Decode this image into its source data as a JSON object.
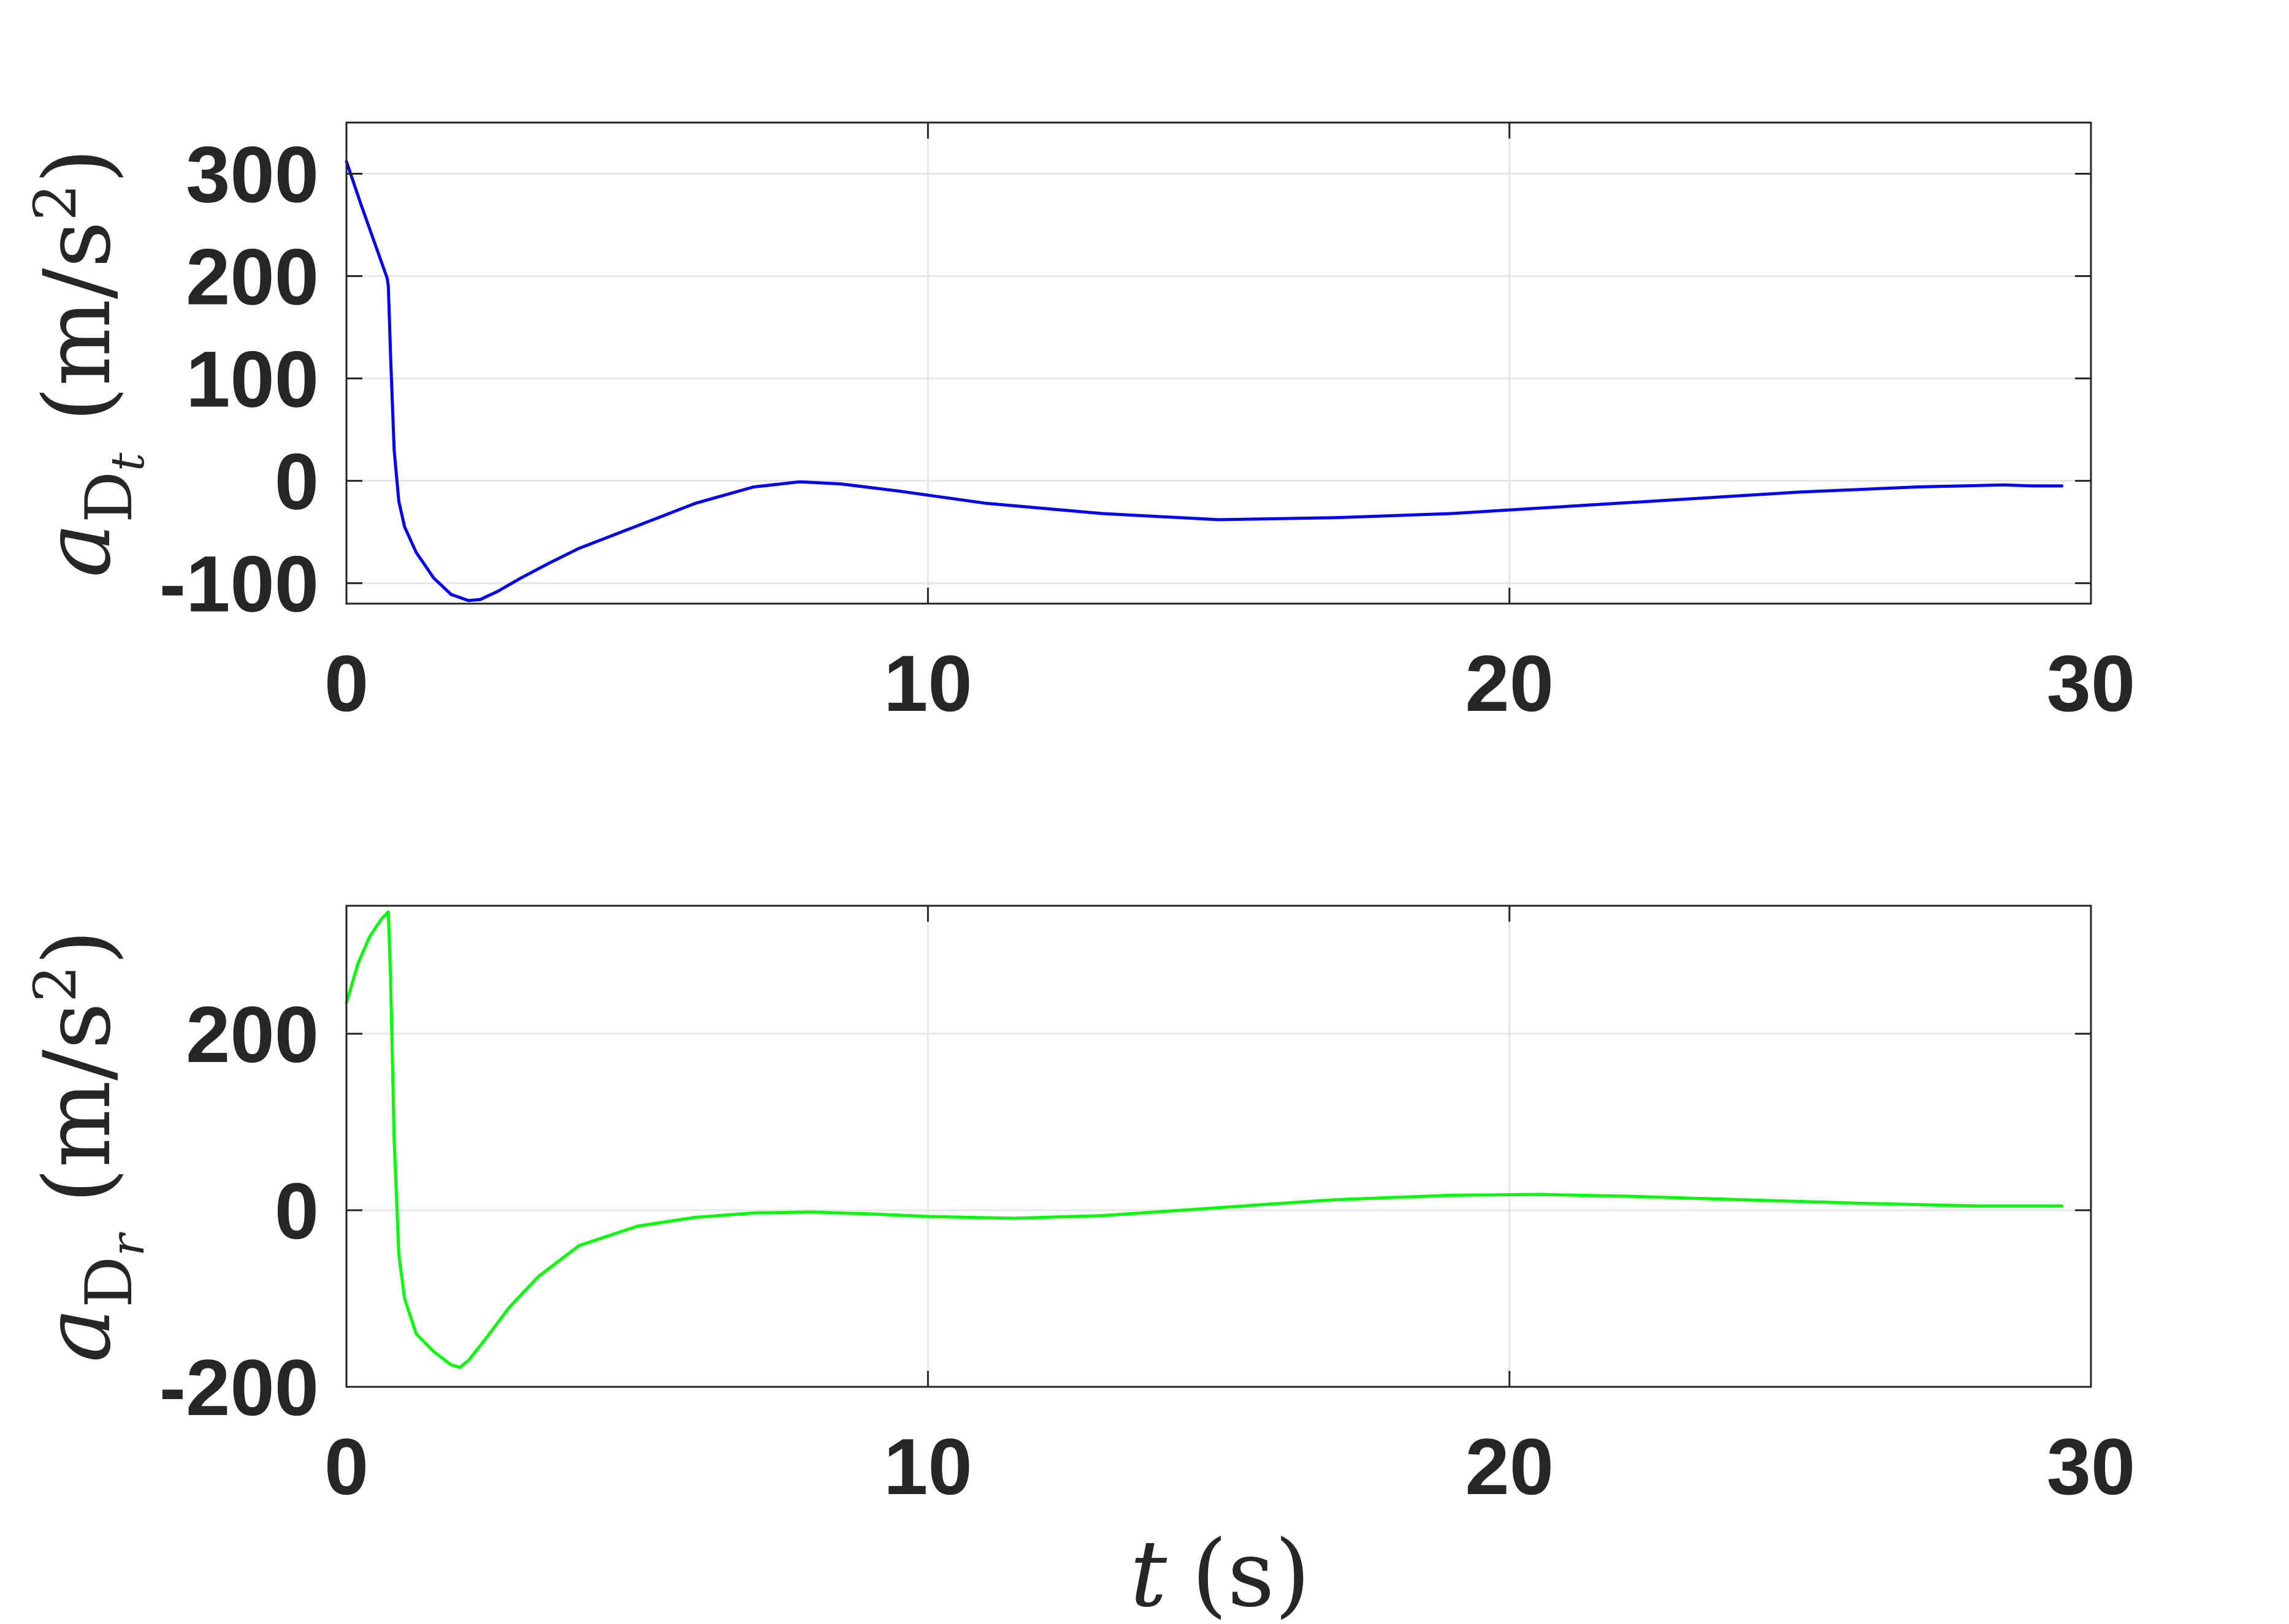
{
  "chart_data": [
    {
      "type": "line",
      "xlabel": "",
      "ylabel": {
        "symbol": "a",
        "subscript": "D",
        "sub_subscript": "t",
        "units": "(m/s",
        "units_power": "2",
        "units_close": ")"
      },
      "xlim": [
        0,
        30
      ],
      "ylim": [
        -120,
        350
      ],
      "xticks": [
        0,
        10,
        20,
        30
      ],
      "xtick_labels": [
        "0",
        "10",
        "20",
        "30"
      ],
      "yticks": [
        -100,
        0,
        100,
        200,
        300
      ],
      "ytick_labels": [
        "-100",
        "0",
        "100",
        "200",
        "300"
      ],
      "grid": true,
      "series": [
        {
          "color": "#0000ff",
          "x": [
            0,
            0.25,
            0.5,
            0.7,
            0.72,
            0.76,
            0.82,
            0.9,
            1.0,
            1.2,
            1.5,
            1.8,
            2.1,
            2.3,
            2.6,
            3.0,
            3.5,
            4.0,
            5.0,
            6.0,
            7.0,
            7.8,
            8.5,
            9.5,
            11.0,
            13.0,
            15.0,
            17.0,
            19.0,
            21.0,
            23.0,
            25.0,
            27.0,
            28.5,
            29.0,
            29.5
          ],
          "y": [
            312,
            270,
            230,
            198,
            190,
            120,
            30,
            -20,
            -45,
            -70,
            -95,
            -111,
            -117,
            -116,
            -108,
            -95,
            -80,
            -66,
            -44,
            -22,
            -6,
            -1,
            -3,
            -10,
            -22,
            -32,
            -38,
            -36,
            -32,
            -25,
            -18,
            -11,
            -6,
            -4,
            -5,
            -5
          ]
        }
      ]
    },
    {
      "type": "line",
      "xlabel": {
        "symbol": "t",
        "units": "(s)"
      },
      "ylabel": {
        "symbol": "a",
        "subscript": "D",
        "sub_subscript": "r",
        "units": "(m/s",
        "units_power": "2",
        "units_close": ")"
      },
      "xlim": [
        0,
        30
      ],
      "ylim": [
        -200,
        345
      ],
      "xticks": [
        0,
        10,
        20,
        30
      ],
      "xtick_labels": [
        "0",
        "10",
        "20",
        "30"
      ],
      "yticks": [
        -200,
        0,
        200
      ],
      "ytick_labels": [
        "-200",
        "0",
        "200"
      ],
      "grid": true,
      "series": [
        {
          "color": "#00ff00",
          "x": [
            0,
            0.2,
            0.4,
            0.6,
            0.72,
            0.76,
            0.82,
            0.9,
            1.0,
            1.2,
            1.5,
            1.8,
            1.95,
            2.1,
            2.4,
            2.8,
            3.3,
            4.0,
            5.0,
            6.0,
            7.0,
            8.0,
            9.0,
            10.0,
            11.5,
            13.0,
            15.0,
            17.0,
            19.0,
            20.5,
            22.0,
            24.0,
            26.0,
            28.0,
            29.5
          ],
          "y": [
            235,
            280,
            310,
            330,
            338,
            260,
            80,
            -50,
            -100,
            -140,
            -160,
            -175,
            -178,
            -170,
            -145,
            -110,
            -75,
            -40,
            -18,
            -8,
            -3,
            -2,
            -4,
            -7,
            -9,
            -6,
            3,
            12,
            17,
            18,
            16,
            12,
            8,
            5,
            5
          ]
        }
      ]
    }
  ]
}
